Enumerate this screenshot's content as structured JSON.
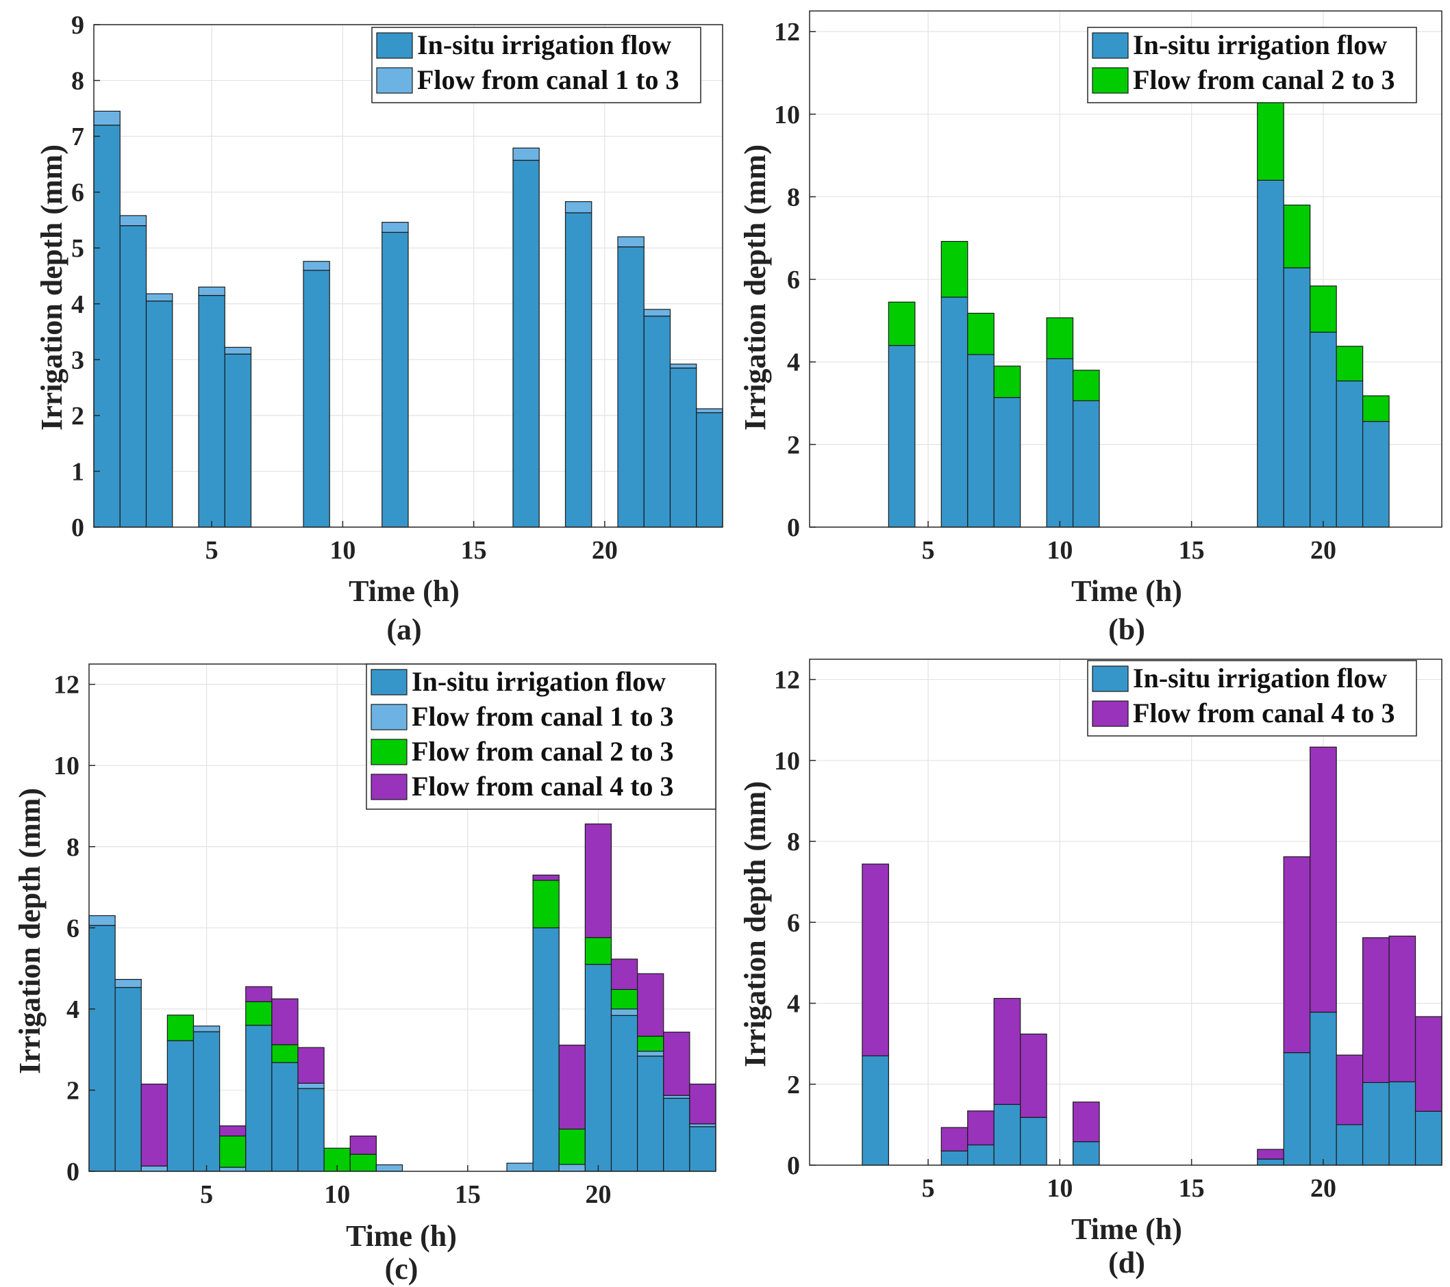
{
  "figure": {
    "colors": {
      "in_situ": "#3696C9",
      "canal_1": "#6CB3E4",
      "canal_2": "#00CC00",
      "canal_4": "#9933BB",
      "grid": "#E3E3E3",
      "axis": "#262626"
    }
  },
  "chart_data": [
    {
      "type": "bar",
      "stacked": true,
      "caption": "(a)",
      "xlabel": "Time (h)",
      "ylabel": "Irrigation depth (mm)",
      "xlim": [
        0.5,
        24.5
      ],
      "ylim": [
        0,
        9
      ],
      "xticks": [
        5,
        10,
        15,
        20
      ],
      "yticks": [
        0,
        1,
        2,
        3,
        4,
        5,
        6,
        7,
        8,
        9
      ],
      "legend_position": "top-right",
      "x": [
        1,
        2,
        3,
        4,
        5,
        6,
        7,
        8,
        9,
        10,
        11,
        12,
        13,
        14,
        15,
        16,
        17,
        18,
        19,
        20,
        21,
        22,
        23,
        24
      ],
      "series": [
        {
          "name": "In-situ irrigation flow",
          "color_key": "in_situ",
          "values": [
            7.2,
            5.4,
            4.05,
            0,
            4.15,
            3.1,
            0,
            0,
            4.6,
            0,
            0,
            5.28,
            0,
            0,
            0,
            0,
            6.57,
            0,
            5.63,
            0,
            5.02,
            3.78,
            2.85,
            2.05
          ]
        },
        {
          "name": "Flow from canal 1 to 3",
          "color_key": "canal_1",
          "values": [
            0.25,
            0.18,
            0.13,
            0,
            0.15,
            0.12,
            0,
            0,
            0.16,
            0,
            0,
            0.18,
            0,
            0,
            0,
            0,
            0.22,
            0,
            0.2,
            0,
            0.18,
            0.12,
            0.07,
            0.07
          ]
        }
      ]
    },
    {
      "type": "bar",
      "stacked": true,
      "caption": "(b)",
      "xlabel": "Time (h)",
      "ylabel": "Irrigation depth (mm)",
      "xlim": [
        0.5,
        24.5
      ],
      "ylim": [
        0,
        12.5
      ],
      "xticks": [
        5,
        10,
        15,
        20
      ],
      "yticks": [
        0,
        2,
        4,
        6,
        8,
        10,
        12
      ],
      "legend_position": "top-right",
      "x": [
        1,
        2,
        3,
        4,
        5,
        6,
        7,
        8,
        9,
        10,
        11,
        12,
        13,
        14,
        15,
        16,
        17,
        18,
        19,
        20,
        21,
        22,
        23,
        24
      ],
      "series": [
        {
          "name": "In-situ irrigation flow",
          "color_key": "in_situ",
          "values": [
            0,
            0,
            0,
            4.4,
            0,
            5.57,
            4.18,
            3.14,
            0,
            4.08,
            3.06,
            0,
            0,
            0,
            0,
            0,
            0,
            8.4,
            6.28,
            4.72,
            3.54,
            2.56,
            0,
            0
          ]
        },
        {
          "name": "Flow from canal 2 to 3",
          "color_key": "canal_2",
          "values": [
            0,
            0,
            0,
            1.05,
            0,
            1.35,
            1.0,
            0.76,
            0,
            0.99,
            0.74,
            0,
            0,
            0,
            0,
            0,
            0,
            2.02,
            1.52,
            1.12,
            0.84,
            0.62,
            0,
            0
          ]
        }
      ]
    },
    {
      "type": "bar",
      "stacked": true,
      "caption": "(c)",
      "xlabel": "Time (h)",
      "ylabel": "Irrigation depth (mm)",
      "xlim": [
        0.5,
        24.5
      ],
      "ylim": [
        0,
        12.5
      ],
      "xticks": [
        5,
        10,
        15,
        20
      ],
      "yticks": [
        0,
        2,
        4,
        6,
        8,
        10,
        12
      ],
      "legend_position": "top-right",
      "x": [
        1,
        2,
        3,
        4,
        5,
        6,
        7,
        8,
        9,
        10,
        11,
        12,
        13,
        14,
        15,
        16,
        17,
        18,
        19,
        20,
        21,
        22,
        23,
        24
      ],
      "series": [
        {
          "name": "In-situ irrigation flow",
          "color_key": "in_situ",
          "values": [
            6.06,
            4.53,
            0,
            3.22,
            3.44,
            0,
            3.6,
            2.68,
            2.04,
            0,
            0,
            0,
            0,
            0,
            0,
            0,
            0,
            6.0,
            0,
            5.1,
            3.84,
            2.84,
            1.8,
            1.1
          ]
        },
        {
          "name": "Flow from canal 1 to 3",
          "color_key": "canal_1",
          "values": [
            0.24,
            0.2,
            0.13,
            0,
            0.14,
            0.1,
            0,
            0,
            0.13,
            0,
            0,
            0.16,
            0,
            0,
            0,
            0,
            0.2,
            0,
            0.17,
            0,
            0.16,
            0.12,
            0.07,
            0.07
          ]
        },
        {
          "name": "Flow from canal 2 to 3",
          "color_key": "canal_2",
          "values": [
            0,
            0,
            0,
            0.63,
            0,
            0.77,
            0.58,
            0.44,
            0,
            0.57,
            0.42,
            0,
            0,
            0,
            0,
            0,
            0,
            1.17,
            0.87,
            0.66,
            0.48,
            0.37,
            0,
            0
          ]
        },
        {
          "name": "Flow from canal 4 to 3",
          "color_key": "canal_4",
          "values": [
            0,
            0,
            2.02,
            0,
            0,
            0.25,
            0.37,
            1.13,
            0.88,
            0,
            0.45,
            0,
            0,
            0,
            0,
            0,
            0,
            0.13,
            2.07,
            2.8,
            0.75,
            1.54,
            1.56,
            0.98
          ]
        }
      ]
    },
    {
      "type": "bar",
      "stacked": true,
      "caption": "(d)",
      "xlabel": "Time (h)",
      "ylabel": "Irrigation depth (mm)",
      "xlim": [
        0.5,
        24.5
      ],
      "ylim": [
        0,
        12.5
      ],
      "xticks": [
        5,
        10,
        15,
        20
      ],
      "yticks": [
        0,
        2,
        4,
        6,
        8,
        10,
        12
      ],
      "legend_position": "top-right",
      "x": [
        1,
        2,
        3,
        4,
        5,
        6,
        7,
        8,
        9,
        10,
        11,
        12,
        13,
        14,
        15,
        16,
        17,
        18,
        19,
        20,
        21,
        22,
        23,
        24
      ],
      "series": [
        {
          "name": "In-situ irrigation flow",
          "color_key": "in_situ",
          "values": [
            0,
            0,
            2.7,
            0,
            0,
            0.35,
            0.5,
            1.5,
            1.18,
            0,
            0.58,
            0,
            0,
            0,
            0,
            0,
            0,
            0.15,
            2.78,
            3.78,
            1.0,
            2.04,
            2.06,
            1.33
          ]
        },
        {
          "name": "Flow from canal 4 to 3",
          "color_key": "canal_4",
          "values": [
            0,
            0,
            4.74,
            0,
            0,
            0.58,
            0.84,
            2.62,
            2.06,
            0,
            0.98,
            0,
            0,
            0,
            0,
            0,
            0,
            0.24,
            4.84,
            6.55,
            1.72,
            3.58,
            3.6,
            2.34
          ]
        }
      ]
    }
  ]
}
